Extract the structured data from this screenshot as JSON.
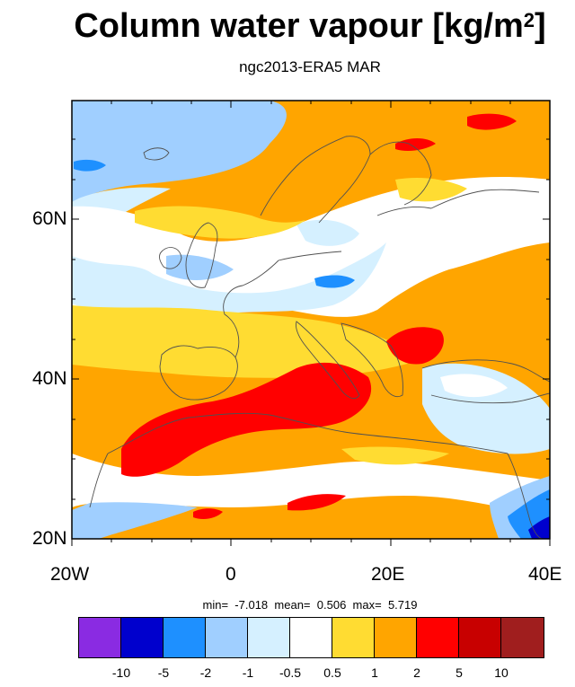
{
  "title": "Column water vapour [kg/m",
  "title_sup": "2",
  "title_end": "]",
  "subtitle": "ngc2013-ERA5 MAR",
  "axes": {
    "y_labels": [
      "60N",
      "40N",
      "20N"
    ],
    "x_labels": [
      "20W",
      "0",
      "20E",
      "40E"
    ]
  },
  "stats": {
    "min_label": "min=",
    "min": "-7.018",
    "mean_label": "mean=",
    "mean": "0.506",
    "max_label": "max=",
    "max": "5.719"
  },
  "colorbar": {
    "colors": [
      "#8a2be2",
      "#0000cd",
      "#1e90ff",
      "#a0cfff",
      "#d5f0ff",
      "#ffffff",
      "#ffdc32",
      "#ffa500",
      "#ff0000",
      "#c80000",
      "#a01e1e"
    ],
    "labels": [
      "-10",
      "-5",
      "-2",
      "-1",
      "-0.5",
      "0.5",
      "1",
      "2",
      "5",
      "10"
    ]
  }
}
